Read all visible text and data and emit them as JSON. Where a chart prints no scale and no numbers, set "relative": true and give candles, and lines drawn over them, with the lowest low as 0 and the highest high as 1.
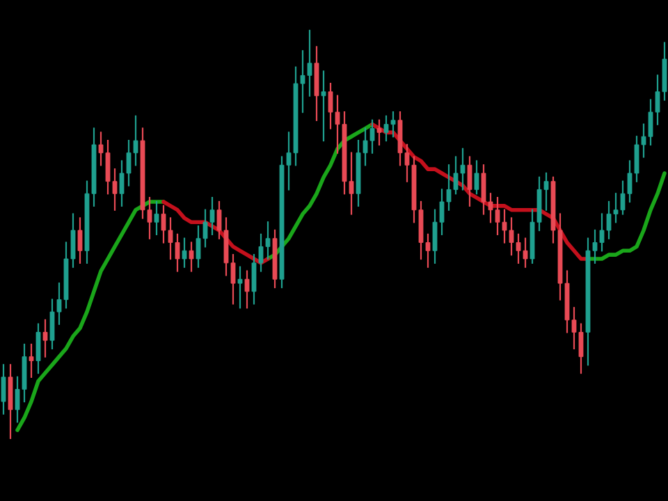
{
  "chart_data": {
    "type": "candlestick",
    "relative": true,
    "colors": [
      "#1fa08f",
      "#e84a55",
      "#1fa08f",
      "#1fa08f",
      "#e84a55",
      "#1fa08f",
      "#e84a55",
      "#1fa08f",
      "#1fa08f",
      "#1fa08f",
      "#1fa08f",
      "#e84a55",
      "#1fa08f",
      "#1fa08f",
      "#e84a55",
      "#e84a55",
      "#e84a55",
      "#1fa08f",
      "#1fa08f",
      "#1fa08f",
      "#e84a55",
      "#e84a55",
      "#1fa08f",
      "#e84a55",
      "#e84a55",
      "#e84a55",
      "#1fa08f",
      "#e84a55",
      "#1fa08f",
      "#1fa08f",
      "#1fa08f",
      "#e84a55",
      "#e84a55",
      "#e84a55",
      "#1fa08f",
      "#e84a55",
      "#1fa08f",
      "#1fa08f",
      "#1fa08f",
      "#e84a55",
      "#1fa08f",
      "#1fa08f",
      "#1fa08f",
      "#1fa08f",
      "#1fa08f",
      "#e84a55",
      "#1fa08f",
      "#e84a55",
      "#e84a55",
      "#e84a55",
      "#e84a55",
      "#1fa08f",
      "#1fa08f",
      "#1fa08f",
      "#e84a55",
      "#1fa08f",
      "#1fa08f",
      "#e84a55",
      "#e84a55",
      "#e84a55",
      "#e84a55",
      "#e84a55",
      "#1fa08f",
      "#1fa08f",
      "#1fa08f",
      "#1fa08f",
      "#1fa08f",
      "#e84a55",
      "#1fa08f",
      "#e84a55",
      "#e84a55",
      "#e84a55",
      "#e84a55",
      "#e84a55",
      "#e84a55",
      "#e84a55",
      "#1fa08f",
      "#1fa08f",
      "#1fa08f",
      "#e84a55",
      "#e84a55",
      "#e84a55",
      "#e84a55",
      "#e84a55",
      "#1fa08f",
      "#1fa08f",
      "#1fa08f",
      "#1fa08f",
      "#1fa08f",
      "#1fa08f",
      "#1fa08f",
      "#1fa08f",
      "#1fa08f",
      "#1fa08f",
      "#1fa08f",
      "#1fa08f"
    ],
    "categories": [
      null,
      null,
      null,
      null,
      null,
      null,
      null,
      null,
      null,
      null,
      null,
      null,
      null,
      null,
      null,
      null,
      null,
      null,
      null,
      null,
      null,
      null,
      null,
      null,
      null,
      null,
      null,
      null,
      null,
      null,
      null,
      null,
      null,
      null,
      null,
      null,
      null,
      null,
      null,
      null,
      null,
      null,
      null,
      null,
      null,
      null,
      null,
      null,
      null,
      null,
      null,
      null,
      null,
      null,
      null,
      null,
      null,
      null,
      null,
      null,
      null,
      null,
      null,
      null,
      null,
      null,
      null,
      null,
      null,
      null,
      null,
      null,
      null,
      null,
      null,
      null,
      null,
      null,
      null,
      null,
      null,
      null,
      null,
      null,
      null,
      null,
      null,
      null,
      null,
      null,
      null,
      null,
      null,
      null,
      null,
      null
    ],
    "ohlc": [
      [
        0.09,
        0.18,
        0.06,
        0.15
      ],
      [
        0.15,
        0.18,
        0.0,
        0.07
      ],
      [
        0.07,
        0.15,
        0.04,
        0.12
      ],
      [
        0.12,
        0.23,
        0.09,
        0.2
      ],
      [
        0.2,
        0.23,
        0.15,
        0.19
      ],
      [
        0.19,
        0.28,
        0.16,
        0.26
      ],
      [
        0.26,
        0.29,
        0.2,
        0.24
      ],
      [
        0.24,
        0.34,
        0.22,
        0.31
      ],
      [
        0.31,
        0.38,
        0.28,
        0.34
      ],
      [
        0.34,
        0.48,
        0.32,
        0.44
      ],
      [
        0.44,
        0.55,
        0.42,
        0.51
      ],
      [
        0.51,
        0.54,
        0.43,
        0.46
      ],
      [
        0.46,
        0.63,
        0.43,
        0.6
      ],
      [
        0.6,
        0.76,
        0.57,
        0.72
      ],
      [
        0.72,
        0.75,
        0.67,
        0.7
      ],
      [
        0.7,
        0.73,
        0.6,
        0.63
      ],
      [
        0.63,
        0.66,
        0.56,
        0.6
      ],
      [
        0.6,
        0.68,
        0.57,
        0.65
      ],
      [
        0.65,
        0.73,
        0.62,
        0.7
      ],
      [
        0.7,
        0.79,
        0.67,
        0.73
      ],
      [
        0.73,
        0.76,
        0.54,
        0.56
      ],
      [
        0.56,
        0.59,
        0.49,
        0.53
      ],
      [
        0.53,
        0.58,
        0.5,
        0.55
      ],
      [
        0.55,
        0.57,
        0.48,
        0.51
      ],
      [
        0.51,
        0.54,
        0.44,
        0.48
      ],
      [
        0.48,
        0.5,
        0.41,
        0.44
      ],
      [
        0.44,
        0.49,
        0.42,
        0.46
      ],
      [
        0.46,
        0.48,
        0.41,
        0.44
      ],
      [
        0.44,
        0.52,
        0.42,
        0.49
      ],
      [
        0.49,
        0.56,
        0.47,
        0.53
      ],
      [
        0.53,
        0.59,
        0.5,
        0.56
      ],
      [
        0.56,
        0.58,
        0.49,
        0.51
      ],
      [
        0.51,
        0.54,
        0.4,
        0.43
      ],
      [
        0.43,
        0.45,
        0.33,
        0.38
      ],
      [
        0.38,
        0.42,
        0.32,
        0.39
      ],
      [
        0.39,
        0.41,
        0.32,
        0.36
      ],
      [
        0.36,
        0.45,
        0.33,
        0.43
      ],
      [
        0.43,
        0.5,
        0.41,
        0.47
      ],
      [
        0.47,
        0.53,
        0.44,
        0.49
      ],
      [
        0.49,
        0.51,
        0.37,
        0.39
      ],
      [
        0.39,
        0.69,
        0.37,
        0.67
      ],
      [
        0.67,
        0.75,
        0.61,
        0.7
      ],
      [
        0.7,
        0.91,
        0.67,
        0.87
      ],
      [
        0.87,
        0.95,
        0.8,
        0.89
      ],
      [
        0.89,
        1.0,
        0.84,
        0.92
      ],
      [
        0.92,
        0.96,
        0.78,
        0.84
      ],
      [
        0.84,
        0.9,
        0.73,
        0.85
      ],
      [
        0.85,
        0.87,
        0.76,
        0.8
      ],
      [
        0.8,
        0.84,
        0.7,
        0.77
      ],
      [
        0.77,
        0.8,
        0.6,
        0.63
      ],
      [
        0.63,
        0.7,
        0.55,
        0.6
      ],
      [
        0.6,
        0.73,
        0.57,
        0.7
      ],
      [
        0.7,
        0.76,
        0.67,
        0.73
      ],
      [
        0.73,
        0.78,
        0.7,
        0.76
      ],
      [
        0.76,
        0.78,
        0.72,
        0.75
      ],
      [
        0.75,
        0.79,
        0.73,
        0.77
      ],
      [
        0.77,
        0.8,
        0.74,
        0.78
      ],
      [
        0.78,
        0.8,
        0.67,
        0.7
      ],
      [
        0.7,
        0.72,
        0.63,
        0.67
      ],
      [
        0.67,
        0.69,
        0.53,
        0.56
      ],
      [
        0.56,
        0.58,
        0.44,
        0.48
      ],
      [
        0.48,
        0.5,
        0.42,
        0.46
      ],
      [
        0.46,
        0.56,
        0.43,
        0.53
      ],
      [
        0.53,
        0.61,
        0.5,
        0.58
      ],
      [
        0.58,
        0.67,
        0.56,
        0.61
      ],
      [
        0.61,
        0.69,
        0.6,
        0.65
      ],
      [
        0.65,
        0.71,
        0.61,
        0.67
      ],
      [
        0.67,
        0.69,
        0.57,
        0.61
      ],
      [
        0.61,
        0.68,
        0.6,
        0.65
      ],
      [
        0.65,
        0.67,
        0.55,
        0.58
      ],
      [
        0.58,
        0.6,
        0.53,
        0.56
      ],
      [
        0.56,
        0.59,
        0.5,
        0.53
      ],
      [
        0.53,
        0.56,
        0.48,
        0.51
      ],
      [
        0.51,
        0.54,
        0.45,
        0.48
      ],
      [
        0.48,
        0.5,
        0.43,
        0.46
      ],
      [
        0.46,
        0.49,
        0.42,
        0.44
      ],
      [
        0.44,
        0.56,
        0.43,
        0.53
      ],
      [
        0.53,
        0.64,
        0.51,
        0.61
      ],
      [
        0.61,
        0.65,
        0.56,
        0.63
      ],
      [
        0.63,
        0.64,
        0.48,
        0.51
      ],
      [
        0.51,
        0.55,
        0.34,
        0.38
      ],
      [
        0.38,
        0.41,
        0.26,
        0.29
      ],
      [
        0.29,
        0.32,
        0.22,
        0.26
      ],
      [
        0.26,
        0.28,
        0.16,
        0.2
      ],
      [
        0.26,
        0.49,
        0.18,
        0.46
      ],
      [
        0.46,
        0.51,
        0.43,
        0.48
      ],
      [
        0.48,
        0.55,
        0.46,
        0.51
      ],
      [
        0.51,
        0.58,
        0.49,
        0.55
      ],
      [
        0.55,
        0.6,
        0.53,
        0.56
      ],
      [
        0.56,
        0.63,
        0.55,
        0.6
      ],
      [
        0.6,
        0.68,
        0.58,
        0.65
      ],
      [
        0.65,
        0.74,
        0.63,
        0.72
      ],
      [
        0.72,
        0.77,
        0.69,
        0.74
      ],
      [
        0.74,
        0.83,
        0.72,
        0.8
      ],
      [
        0.8,
        0.89,
        0.77,
        0.85
      ],
      [
        0.85,
        0.97,
        0.83,
        0.93
      ]
    ],
    "series": [
      {
        "type": "line",
        "color": "#1aa61a",
        "values": [
          null,
          null,
          0.02,
          0.05,
          0.09,
          0.14,
          0.16,
          0.18,
          0.2,
          0.22,
          0.25,
          0.27,
          0.31,
          0.36,
          0.41,
          0.44,
          0.47,
          0.5,
          0.53,
          0.56,
          0.57,
          0.58,
          0.58,
          0.58,
          null,
          null,
          null,
          null,
          null,
          null,
          null,
          null,
          null,
          null,
          null,
          null,
          null,
          null,
          0.44,
          0.45,
          0.47,
          0.49,
          0.52,
          0.55,
          0.57,
          0.6,
          0.64,
          0.67,
          0.71,
          0.73,
          0.74,
          0.75,
          0.76,
          0.77,
          null,
          null,
          null,
          null,
          null,
          null,
          null,
          null,
          null,
          null,
          null,
          null,
          null,
          null,
          null,
          null,
          null,
          null,
          null,
          null,
          null,
          null,
          null,
          null,
          null,
          null,
          null,
          null,
          null,
          null,
          0.44,
          0.44,
          0.44,
          0.45,
          0.45,
          0.46,
          0.46,
          0.47,
          0.51,
          0.56,
          0.6,
          0.65
        ]
      },
      {
        "type": "line",
        "color": "#c4101c",
        "values": [
          null,
          null,
          null,
          null,
          null,
          null,
          null,
          null,
          null,
          null,
          null,
          null,
          null,
          null,
          null,
          null,
          null,
          null,
          null,
          null,
          null,
          null,
          null,
          0.58,
          0.57,
          0.56,
          0.54,
          0.53,
          0.53,
          0.53,
          0.52,
          0.51,
          0.49,
          0.47,
          0.46,
          0.45,
          0.44,
          0.43,
          0.44,
          null,
          null,
          null,
          null,
          null,
          null,
          null,
          null,
          null,
          null,
          null,
          null,
          null,
          null,
          0.77,
          0.76,
          0.75,
          0.75,
          0.73,
          0.71,
          0.69,
          0.68,
          0.66,
          0.66,
          0.65,
          0.64,
          0.63,
          0.62,
          0.6,
          0.59,
          0.58,
          0.57,
          0.57,
          0.57,
          0.56,
          0.56,
          0.56,
          0.56,
          0.56,
          0.55,
          0.54,
          0.51,
          0.48,
          0.46,
          0.44,
          0.44,
          null,
          null,
          null,
          null,
          null,
          null,
          null,
          null,
          null,
          null,
          null
        ]
      }
    ]
  }
}
